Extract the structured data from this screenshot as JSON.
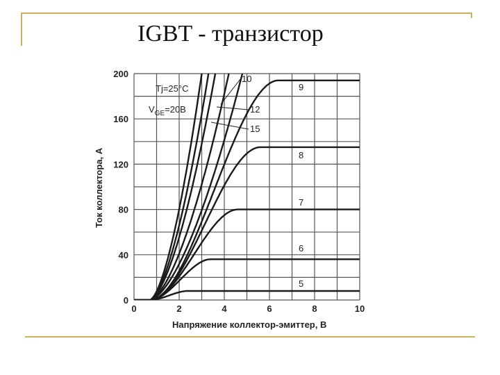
{
  "slide": {
    "title": "IGBT - транзистор"
  },
  "chart_data": {
    "type": "line",
    "title": "",
    "xlabel": "Напряжение коллектор-эмиттер, В",
    "ylabel": "Ток коллектора, А",
    "xlim": [
      0,
      10
    ],
    "ylim": [
      0,
      200
    ],
    "xticks": [
      "0",
      "2",
      "4",
      "6",
      "8",
      "10"
    ],
    "yticks": [
      "0",
      "40",
      "80",
      "120",
      "160",
      "200"
    ],
    "grid": true,
    "annotations": [
      {
        "text": "Tj=25°C"
      },
      {
        "text_main": "V",
        "text_sub": "GE",
        "text_rest": "=20В"
      }
    ],
    "series": [
      {
        "name": "5",
        "sat": 8,
        "knee": 2.4
      },
      {
        "name": "6",
        "sat": 36,
        "knee": 3.4
      },
      {
        "name": "7",
        "sat": 80,
        "knee": 4.6
      },
      {
        "name": "8",
        "sat": 135,
        "knee": 5.6
      },
      {
        "name": "9",
        "sat": 194,
        "knee": 6.4
      },
      {
        "name": "10",
        "sat": 200,
        "x_at_top": 4.8
      },
      {
        "name": "12",
        "sat": 200,
        "x_at_top": 4.2
      },
      {
        "name": "15",
        "sat": 200,
        "x_at_top": 3.6
      },
      {
        "name": "",
        "sat": 200,
        "x_at_top": 3.3
      },
      {
        "name": "",
        "sat": 200,
        "x_at_top": 3.0
      }
    ]
  }
}
